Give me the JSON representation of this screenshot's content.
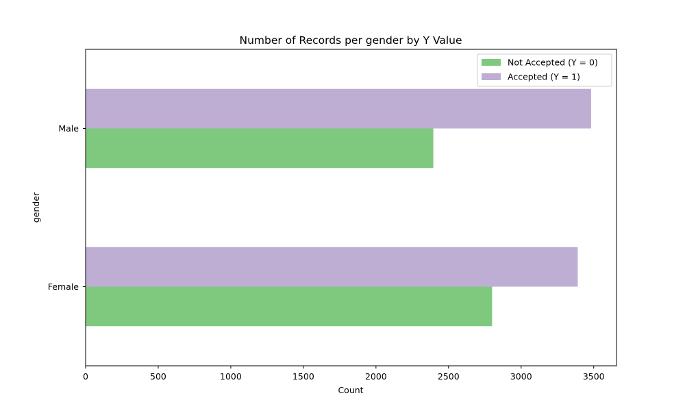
{
  "chart_data": {
    "type": "bar",
    "orientation": "horizontal",
    "title": "Number of Records per gender by Y Value",
    "xlabel": "Count",
    "ylabel": "gender",
    "categories": [
      "Female",
      "Male"
    ],
    "series": [
      {
        "name": "Not Accepted (Y = 0)",
        "values": [
          2800,
          2395
        ],
        "color": "#7fc97f"
      },
      {
        "name": "Accepted (Y = 1)",
        "values": [
          3390,
          3482
        ],
        "color": "#beaed4"
      }
    ],
    "xlim": [
      0,
      3657
    ],
    "xticks": [
      0,
      500,
      1000,
      1500,
      2000,
      2500,
      3000,
      3500
    ],
    "grid": false,
    "legend_position": "top-right"
  }
}
